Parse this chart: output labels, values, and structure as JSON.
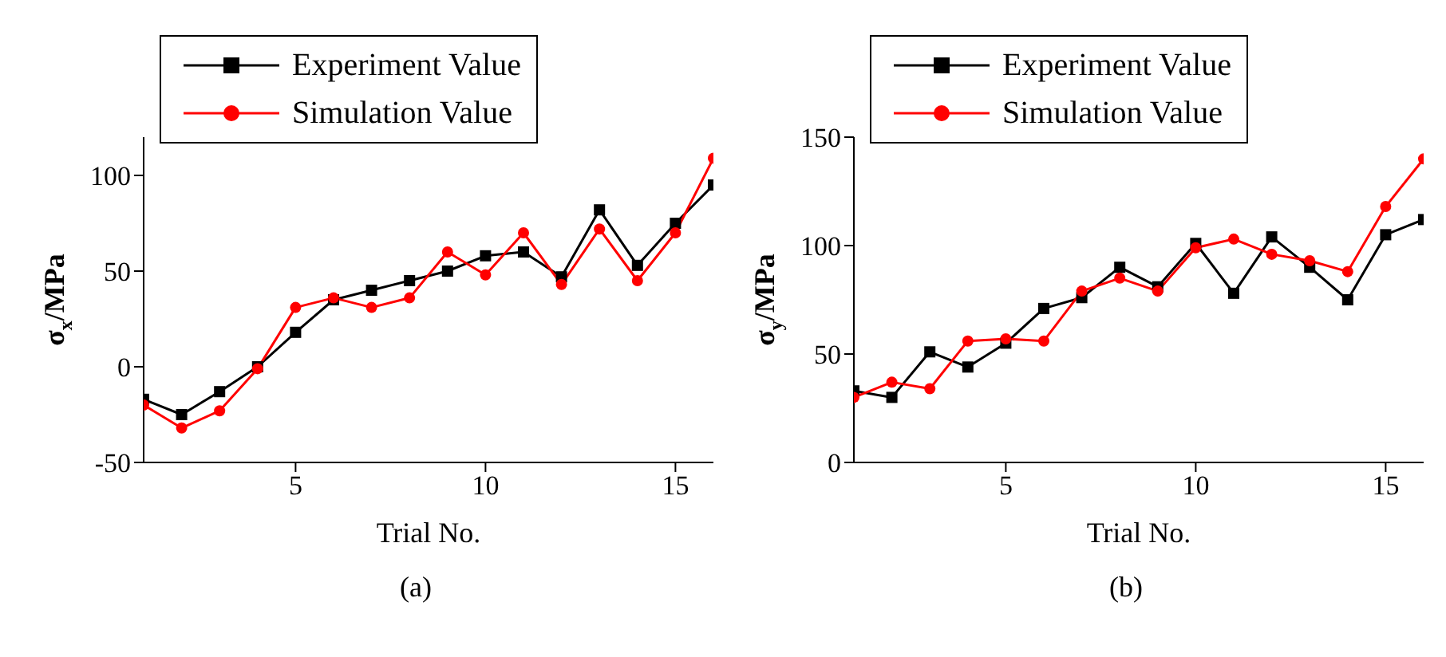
{
  "chart_data": [
    {
      "type": "line",
      "title": "(a)",
      "xlabel": "Trial No.",
      "ylabel": "σ$_{x}$/MPa",
      "x": [
        1,
        2,
        3,
        4,
        5,
        6,
        7,
        8,
        9,
        10,
        11,
        12,
        13,
        14,
        15,
        16
      ],
      "xlim": [
        1,
        16
      ],
      "xticks": [
        5,
        10,
        15
      ],
      "ylim": [
        -50,
        120
      ],
      "yticks": [
        -50,
        0,
        50,
        100
      ],
      "legend": "top left",
      "series": [
        {
          "name": "Experiment Value",
          "color": "#000000",
          "marker": "square",
          "values": [
            -17,
            -25,
            -13,
            0,
            18,
            35,
            40,
            45,
            50,
            58,
            60,
            47,
            82,
            53,
            75,
            95
          ]
        },
        {
          "name": "Simulation Value",
          "color": "#ff0000",
          "marker": "circle",
          "values": [
            -20,
            -32,
            -23,
            -1,
            31,
            36,
            31,
            36,
            60,
            48,
            70,
            43,
            72,
            45,
            70,
            109
          ]
        }
      ]
    },
    {
      "type": "line",
      "title": "(b)",
      "xlabel": "Trial No.",
      "ylabel": "σ$_{y}$/MPa",
      "x": [
        1,
        2,
        3,
        4,
        5,
        6,
        7,
        8,
        9,
        10,
        11,
        12,
        13,
        14,
        15,
        16
      ],
      "xlim": [
        1,
        16
      ],
      "xticks": [
        5,
        10,
        15
      ],
      "ylim": [
        0,
        150
      ],
      "yticks": [
        0,
        50,
        100,
        150
      ],
      "legend": "top left",
      "series": [
        {
          "name": "Experiment Value",
          "color": "#000000",
          "marker": "square",
          "values": [
            33,
            30,
            51,
            44,
            55,
            71,
            76,
            90,
            81,
            101,
            78,
            104,
            90,
            75,
            105,
            112
          ]
        },
        {
          "name": "Simulation Value",
          "color": "#ff0000",
          "marker": "circle",
          "values": [
            30,
            37,
            34,
            56,
            57,
            56,
            79,
            85,
            79,
            99,
            103,
            96,
            93,
            88,
            118,
            140
          ]
        }
      ]
    }
  ]
}
